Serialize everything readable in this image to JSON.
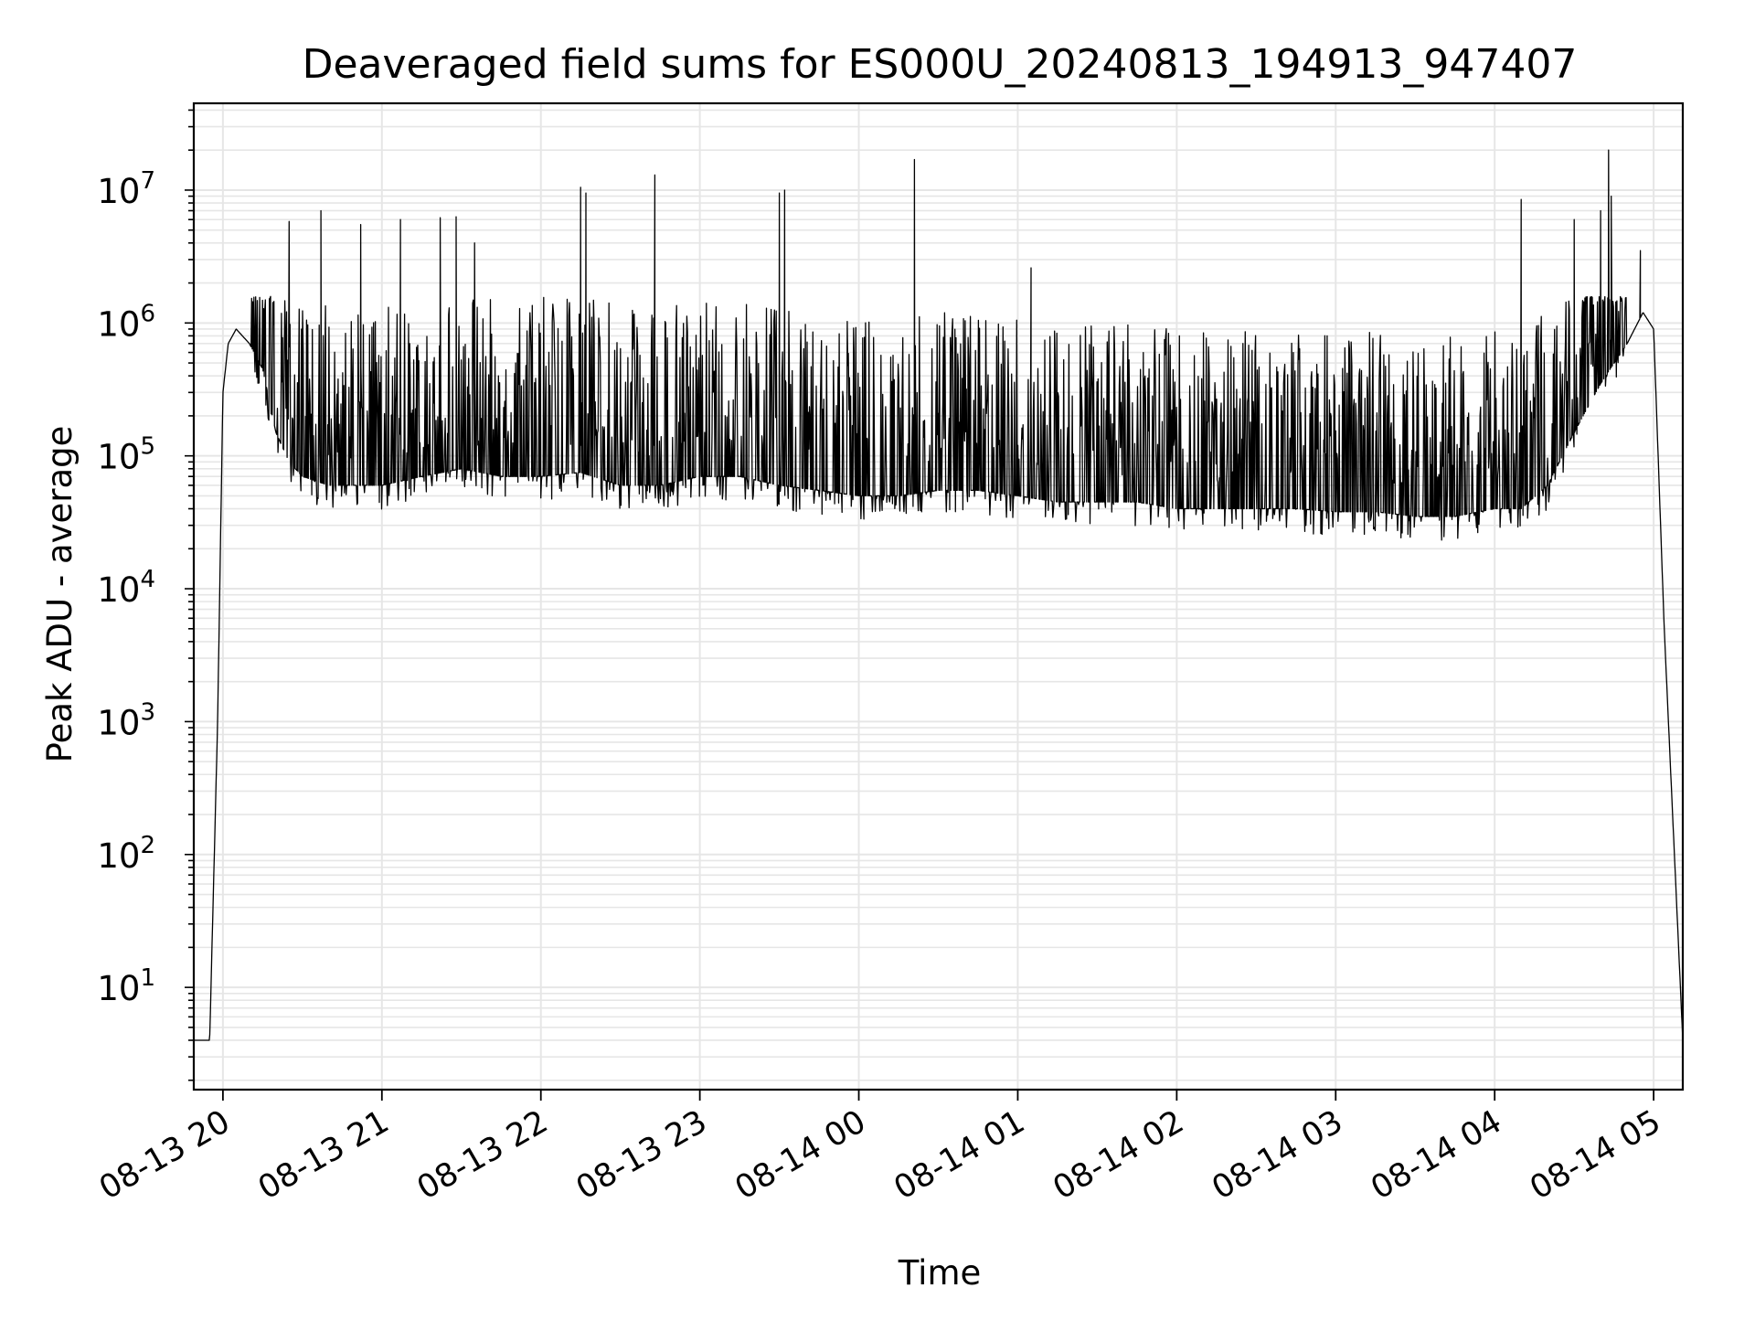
{
  "chart_data": {
    "type": "line",
    "title": "Deaveraged field sums for ES000U_20240813_194913_947407",
    "xlabel": "Time",
    "ylabel": "Peak ADU - average",
    "yscale": "log",
    "ylim": [
      1.7,
      45000000
    ],
    "xlim": [
      "2024-08-13 19:49:00",
      "2024-08-14 05:11:00"
    ],
    "x_tick_labels": [
      "08-13 20",
      "08-13 21",
      "08-13 22",
      "08-13 23",
      "08-14 00",
      "08-14 01",
      "08-14 02",
      "08-14 03",
      "08-14 04",
      "08-14 05"
    ],
    "x_tick_times": [
      "2024-08-13 20:00",
      "2024-08-13 21:00",
      "2024-08-13 22:00",
      "2024-08-13 23:00",
      "2024-08-14 00:00",
      "2024-08-14 01:00",
      "2024-08-14 02:00",
      "2024-08-14 03:00",
      "2024-08-14 04:00",
      "2024-08-14 05:00"
    ],
    "y_tick_labels": [
      {
        "base": "10",
        "exp": "1",
        "value": 10
      },
      {
        "base": "10",
        "exp": "2",
        "value": 100
      },
      {
        "base": "10",
        "exp": "3",
        "value": 1000
      },
      {
        "base": "10",
        "exp": "4",
        "value": 10000
      },
      {
        "base": "10",
        "exp": "5",
        "value": 100000
      },
      {
        "base": "10",
        "exp": "6",
        "value": 1000000
      },
      {
        "base": "10",
        "exp": "7",
        "value": 10000000
      }
    ],
    "grid": true,
    "line_color": "#000000",
    "grid_color": "#e6e6e6",
    "series": [
      {
        "x": [
          "2024-08-13 19:49",
          "2024-08-13 19:55",
          "2024-08-13 19:58",
          "2024-08-13 20:00",
          "2024-08-13 20:02",
          "2024-08-13 20:05",
          "2024-08-13 20:10",
          "2024-08-13 20:15",
          "2024-08-13 20:20",
          "2024-08-13 20:25",
          "2024-08-13 20:30",
          "2024-08-13 20:40",
          "2024-08-13 20:50",
          "2024-08-13 21:00",
          "2024-08-13 21:15",
          "2024-08-13 21:30",
          "2024-08-13 21:45",
          "2024-08-13 22:00",
          "2024-08-13 22:15",
          "2024-08-13 22:30",
          "2024-08-13 22:45",
          "2024-08-13 23:00",
          "2024-08-13 23:15",
          "2024-08-13 23:30",
          "2024-08-13 23:45",
          "2024-08-14 00:00",
          "2024-08-14 00:15",
          "2024-08-14 00:30",
          "2024-08-14 00:45",
          "2024-08-14 01:00",
          "2024-08-14 01:15",
          "2024-08-14 01:30",
          "2024-08-14 01:45",
          "2024-08-14 02:00",
          "2024-08-14 02:15",
          "2024-08-14 02:30",
          "2024-08-14 02:45",
          "2024-08-14 03:00",
          "2024-08-14 03:15",
          "2024-08-14 03:30",
          "2024-08-14 03:45",
          "2024-08-14 04:00",
          "2024-08-14 04:10",
          "2024-08-14 04:20",
          "2024-08-14 04:30",
          "2024-08-14 04:40",
          "2024-08-14 04:50",
          "2024-08-14 04:56",
          "2024-08-14 05:00",
          "2024-08-14 05:04",
          "2024-08-14 05:11"
        ],
        "y": [
          4,
          4,
          1000,
          300000,
          700000,
          900000,
          700000,
          450000,
          150000,
          90000,
          70000,
          60000,
          60000,
          60000,
          70000,
          80000,
          70000,
          70000,
          75000,
          60000,
          60000,
          70000,
          70000,
          60000,
          55000,
          50000,
          50000,
          55000,
          55000,
          50000,
          45000,
          45000,
          45000,
          40000,
          40000,
          40000,
          40000,
          38000,
          38000,
          35000,
          35000,
          40000,
          40000,
          60000,
          150000,
          350000,
          700000,
          1200000,
          900000,
          5000,
          4
        ],
        "spike_times": [
          "2024-08-13 20:25",
          "2024-08-13 20:37",
          "2024-08-13 20:52",
          "2024-08-13 21:07",
          "2024-08-13 21:22",
          "2024-08-13 21:28",
          "2024-08-13 21:35",
          "2024-08-13 22:15",
          "2024-08-13 22:17",
          "2024-08-13 22:43",
          "2024-08-13 23:30",
          "2024-08-13 23:32",
          "2024-08-14 00:21",
          "2024-08-14 01:05",
          "2024-08-14 04:10",
          "2024-08-14 04:30",
          "2024-08-14 04:40",
          "2024-08-14 04:43",
          "2024-08-14 04:44",
          "2024-08-14 04:55"
        ],
        "spike_values": [
          5800000,
          7000000,
          5500000,
          6000000,
          6200000,
          6300000,
          4000000,
          10500000,
          9500000,
          13000000,
          9500000,
          10000000,
          17000000,
          2600000,
          8500000,
          6000000,
          7000000,
          20000000,
          9000000,
          3500000
        ]
      }
    ]
  }
}
